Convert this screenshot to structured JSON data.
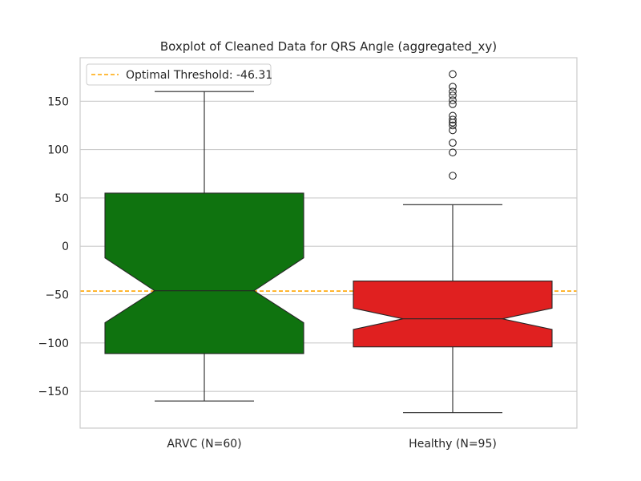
{
  "chart_data": {
    "type": "boxplot",
    "title": "Boxplot of Cleaned Data for QRS Angle (aggregated_xy)",
    "xlabel": "",
    "ylabel": "",
    "ylim": [
      -188,
      195
    ],
    "yticks": [
      -150,
      -100,
      -50,
      0,
      50,
      100,
      150
    ],
    "grid": "horizontal",
    "legend_position": "top-left",
    "notched": true,
    "categories": [
      "ARVC (N=60)",
      "Healthy (N=95)"
    ],
    "boxes": [
      {
        "label": "ARVC (N=60)",
        "color": "#0f730f",
        "whisker_low": -160,
        "q1": -111,
        "notch_low": -79,
        "median": -46,
        "notch_high": -12,
        "q3": 55,
        "whisker_high": 160,
        "outliers": []
      },
      {
        "label": "Healthy (N=95)",
        "color": "#e02020",
        "whisker_low": -172,
        "q1": -104,
        "notch_low": -86,
        "median": -75,
        "notch_high": -64,
        "q3": -36,
        "whisker_high": 43,
        "outliers": [
          73,
          97,
          107,
          120,
          125,
          128,
          131,
          135,
          147,
          151,
          156,
          160,
          165,
          178
        ]
      }
    ],
    "threshold": {
      "label": "Optimal Threshold: -46.31",
      "value": -46.31,
      "color": "#ffa500"
    }
  }
}
